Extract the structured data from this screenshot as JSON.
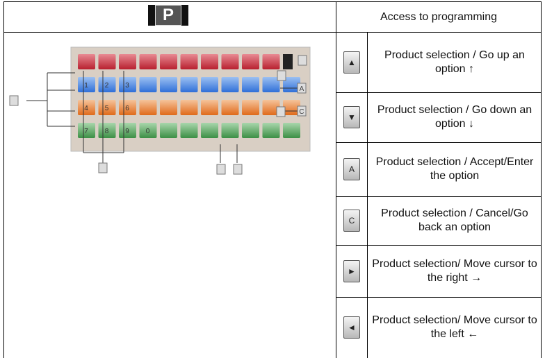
{
  "header": {
    "icon": "P",
    "title": "Access to programming"
  },
  "keypad": {
    "key_digits": [
      "1",
      "2",
      "3",
      "4",
      "5",
      "6",
      "7",
      "8",
      "9",
      "0"
    ],
    "callouts": [
      "A",
      "C"
    ]
  },
  "rows": [
    {
      "icon": "▲",
      "text": "Product selection / Go up an option ↑"
    },
    {
      "icon": "▼",
      "text": "Product selection / Go down an option ↓"
    },
    {
      "icon": "A",
      "text": "Product selection / Accept/Enter the option"
    },
    {
      "icon": "C",
      "text": "Product selection / Cancel/Go back an option"
    },
    {
      "icon": "►",
      "text": "Product selection/ Move cursor to the right →"
    },
    {
      "icon": "◄",
      "text": "Product selection/ Move cursor to the left ←"
    }
  ]
}
